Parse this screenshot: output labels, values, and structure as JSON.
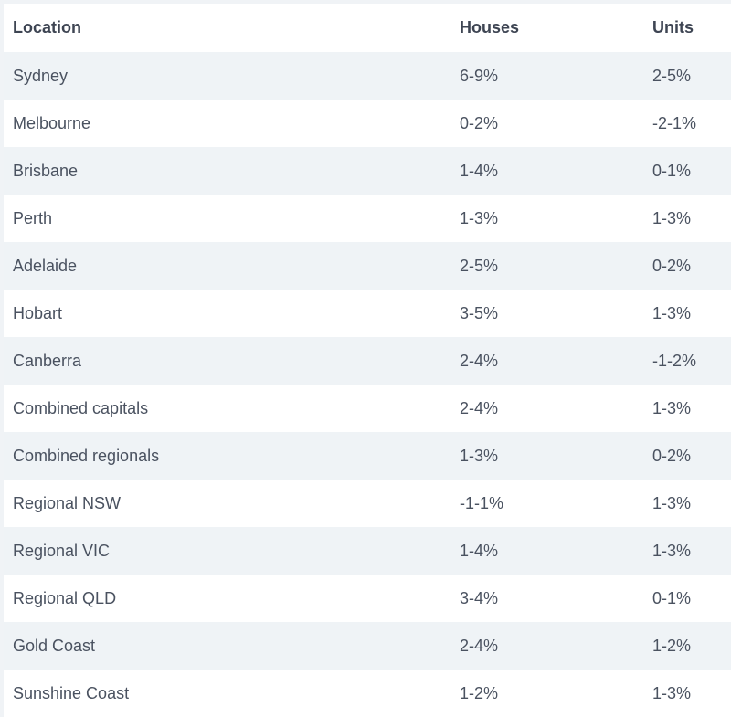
{
  "table": {
    "headers": {
      "location": "Location",
      "houses": "Houses",
      "units": "Units"
    },
    "rows": [
      {
        "location": "Sydney",
        "houses": "6-9%",
        "units": "2-5%"
      },
      {
        "location": "Melbourne",
        "houses": "0-2%",
        "units": "-2-1%"
      },
      {
        "location": "Brisbane",
        "houses": "1-4%",
        "units": "0-1%"
      },
      {
        "location": "Perth",
        "houses": "1-3%",
        "units": "1-3%"
      },
      {
        "location": "Adelaide",
        "houses": "2-5%",
        "units": "0-2%"
      },
      {
        "location": "Hobart",
        "houses": "3-5%",
        "units": "1-3%"
      },
      {
        "location": "Canberra",
        "houses": "2-4%",
        "units": "-1-2%"
      },
      {
        "location": "Combined capitals",
        "houses": "2-4%",
        "units": "1-3%"
      },
      {
        "location": "Combined regionals",
        "houses": "1-3%",
        "units": "0-2%"
      },
      {
        "location": "Regional NSW",
        "houses": "-1-1%",
        "units": "1-3%"
      },
      {
        "location": "Regional VIC",
        "houses": "1-4%",
        "units": "1-3%"
      },
      {
        "location": "Regional QLD",
        "houses": "3-4%",
        "units": "0-1%"
      },
      {
        "location": "Gold Coast",
        "houses": "2-4%",
        "units": "1-2%"
      },
      {
        "location": "Sunshine Coast",
        "houses": "1-2%",
        "units": "1-3%"
      }
    ]
  },
  "colors": {
    "stripe": "#eff3f6",
    "text": "#4a5260",
    "header_text": "#3e4553"
  }
}
